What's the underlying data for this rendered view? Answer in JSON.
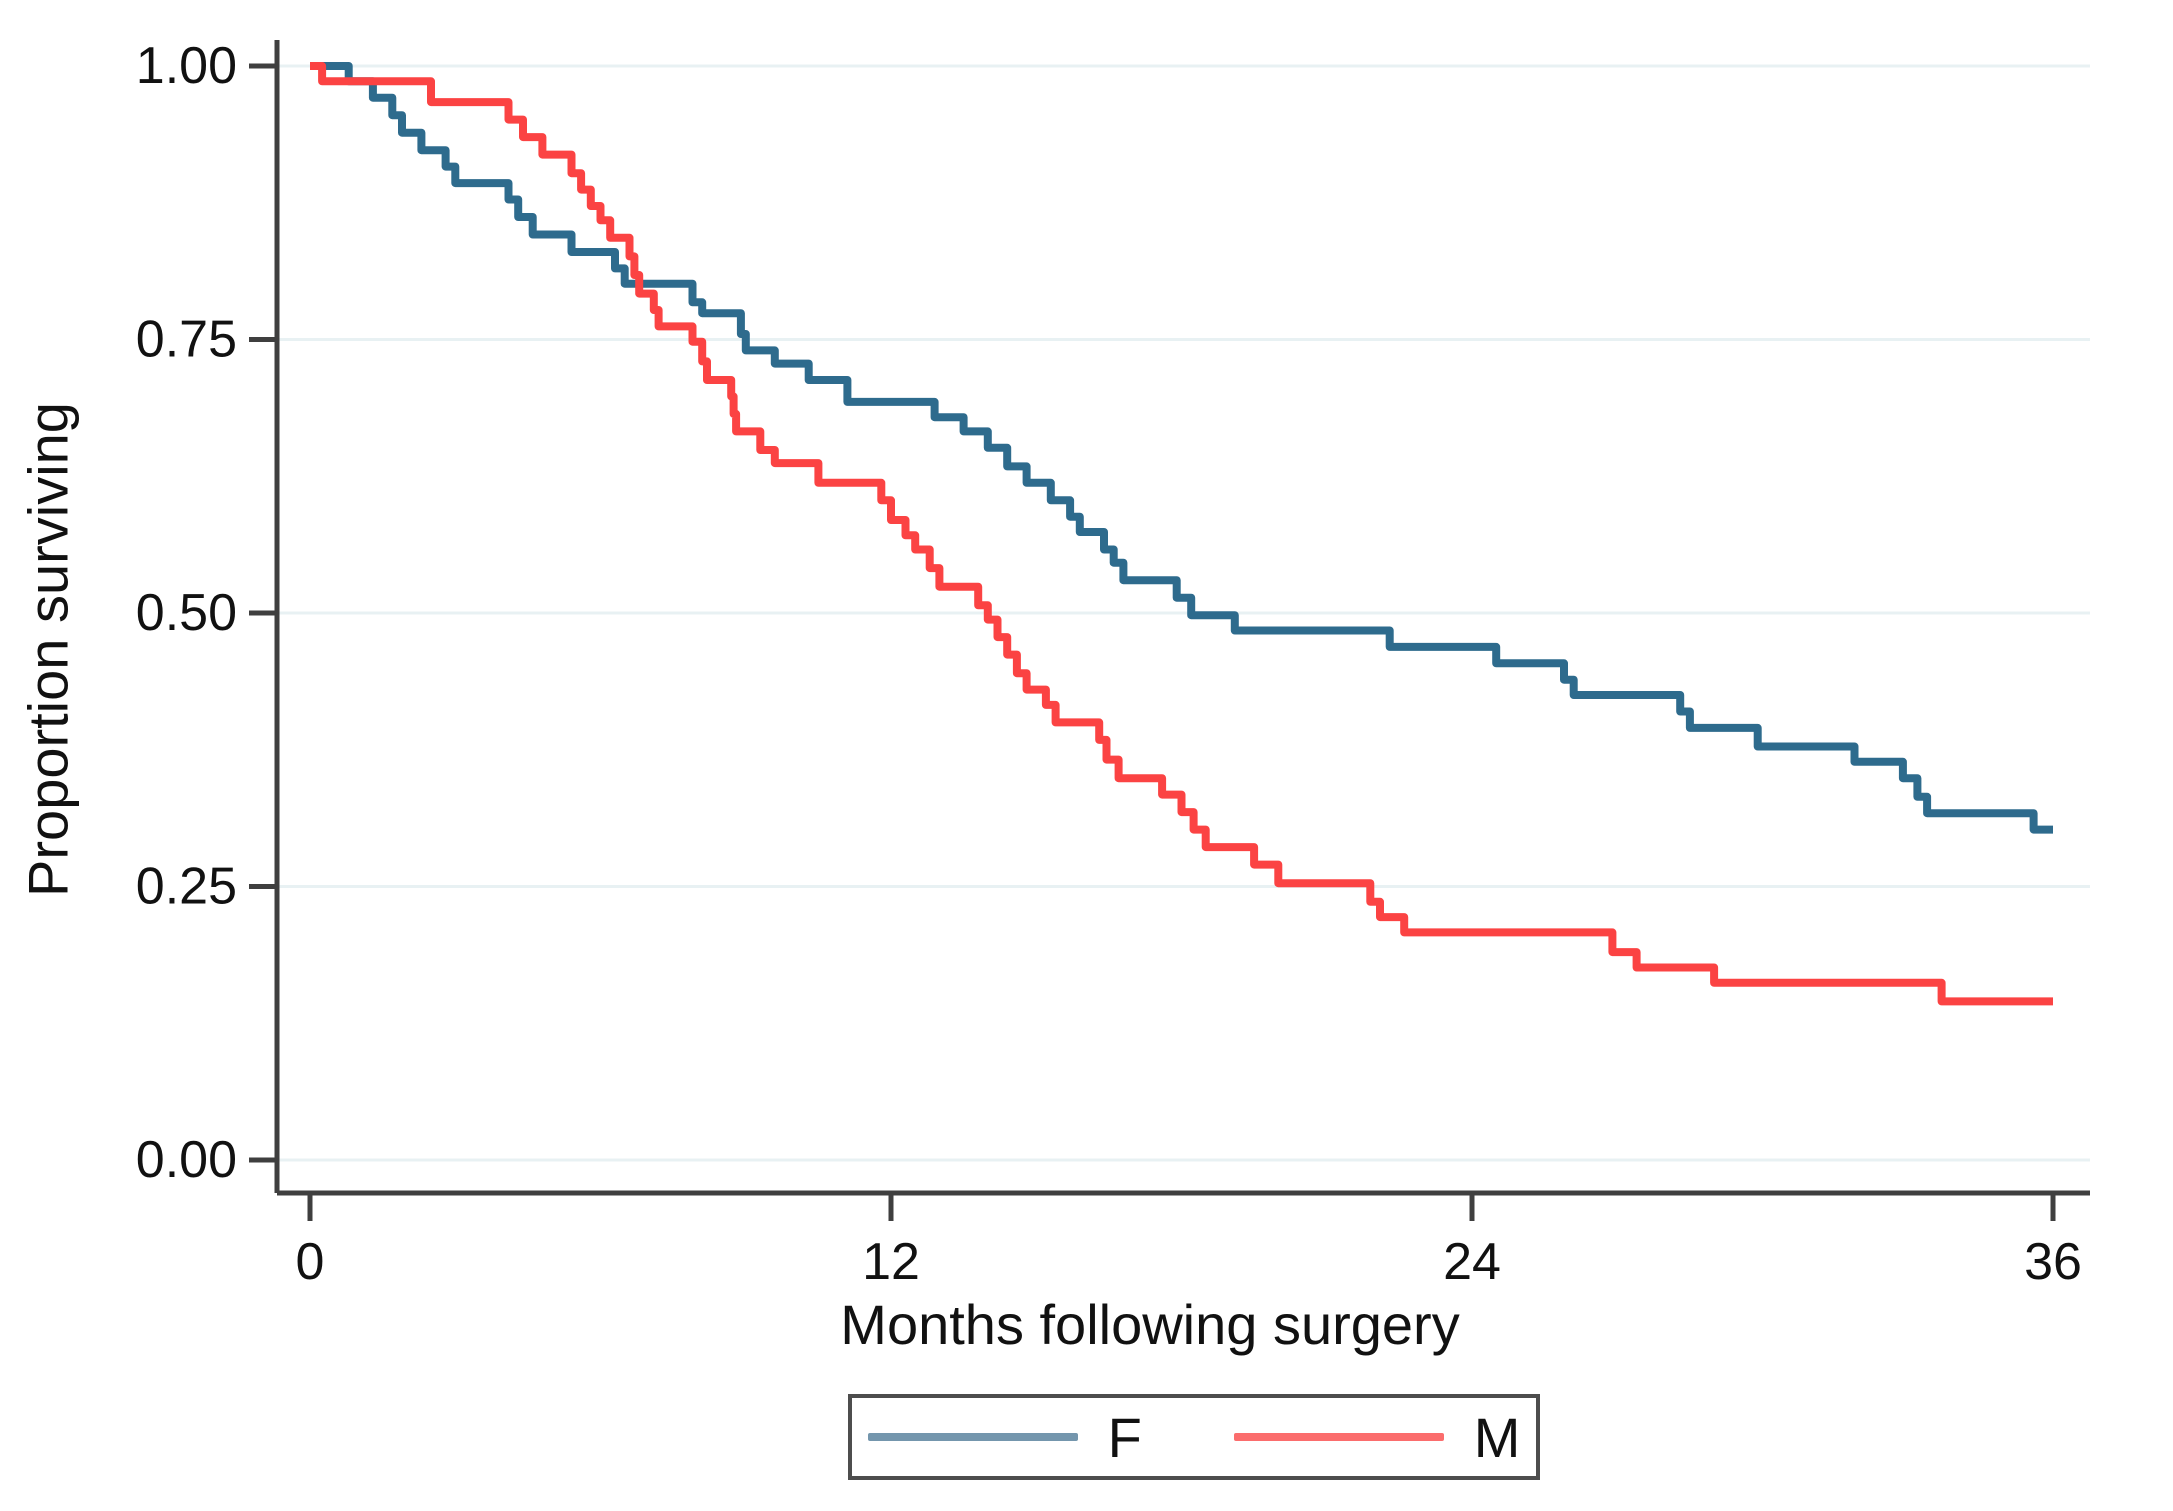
{
  "chart_data": {
    "type": "line",
    "subtype": "kaplan-meier-survival-step",
    "title": "",
    "xlabel": "Months following surgery",
    "ylabel": "Proportion surviving",
    "xlim": [
      0,
      36
    ],
    "ylim": [
      0,
      1
    ],
    "grid": "horizontal",
    "gridline_color": "#e8f1f3",
    "axis_color": "#3f3f3f",
    "legend_position": "bottom-center",
    "x_ticks": [
      {
        "value": 0,
        "label": "0"
      },
      {
        "value": 12,
        "label": "12"
      },
      {
        "value": 24,
        "label": "24"
      },
      {
        "value": 36,
        "label": "36"
      }
    ],
    "y_ticks": [
      {
        "value": 1.0,
        "label": "1.00"
      },
      {
        "value": 0.75,
        "label": "0.75"
      },
      {
        "value": 0.5,
        "label": "0.50"
      },
      {
        "value": 0.25,
        "label": "0.25"
      },
      {
        "value": 0.0,
        "label": "0.00"
      }
    ],
    "series": [
      {
        "name": "F",
        "color": "#2e6b8d",
        "legend_color": "#7496ad",
        "points": [
          [
            0,
            1.0
          ],
          [
            0.8,
            0.986
          ],
          [
            1.3,
            0.971
          ],
          [
            1.7,
            0.955
          ],
          [
            1.9,
            0.939
          ],
          [
            2.3,
            0.923
          ],
          [
            2.8,
            0.908
          ],
          [
            3.0,
            0.893
          ],
          [
            4.1,
            0.878
          ],
          [
            4.3,
            0.862
          ],
          [
            4.6,
            0.846
          ],
          [
            5.4,
            0.83
          ],
          [
            6.3,
            0.815
          ],
          [
            6.5,
            0.801
          ],
          [
            7.9,
            0.784
          ],
          [
            8.1,
            0.774
          ],
          [
            8.9,
            0.755
          ],
          [
            9.0,
            0.74
          ],
          [
            9.6,
            0.728
          ],
          [
            10.3,
            0.713
          ],
          [
            11.1,
            0.693
          ],
          [
            12.9,
            0.679
          ],
          [
            13.5,
            0.666
          ],
          [
            14.0,
            0.651
          ],
          [
            14.4,
            0.634
          ],
          [
            14.8,
            0.619
          ],
          [
            15.3,
            0.603
          ],
          [
            15.7,
            0.588
          ],
          [
            15.9,
            0.574
          ],
          [
            16.4,
            0.558
          ],
          [
            16.6,
            0.546
          ],
          [
            16.8,
            0.53
          ],
          [
            17.9,
            0.514
          ],
          [
            18.2,
            0.498
          ],
          [
            19.1,
            0.484
          ],
          [
            22.3,
            0.469
          ],
          [
            24.5,
            0.454
          ],
          [
            25.9,
            0.439
          ],
          [
            26.1,
            0.425
          ],
          [
            28.3,
            0.41
          ],
          [
            28.5,
            0.395
          ],
          [
            29.9,
            0.378
          ],
          [
            31.9,
            0.364
          ],
          [
            32.9,
            0.349
          ],
          [
            33.2,
            0.332
          ],
          [
            33.4,
            0.317
          ],
          [
            35.6,
            0.302
          ]
        ]
      },
      {
        "name": "M",
        "color": "#fb4343",
        "legend_color": "#fb6d6d",
        "points": [
          [
            0,
            1.0
          ],
          [
            0.25,
            0.986
          ],
          [
            2.5,
            0.967
          ],
          [
            4.1,
            0.951
          ],
          [
            4.4,
            0.935
          ],
          [
            4.8,
            0.919
          ],
          [
            5.4,
            0.902
          ],
          [
            5.6,
            0.887
          ],
          [
            5.8,
            0.872
          ],
          [
            6.0,
            0.859
          ],
          [
            6.2,
            0.843
          ],
          [
            6.6,
            0.826
          ],
          [
            6.7,
            0.809
          ],
          [
            6.8,
            0.792
          ],
          [
            7.1,
            0.777
          ],
          [
            7.2,
            0.762
          ],
          [
            7.9,
            0.748
          ],
          [
            8.1,
            0.73
          ],
          [
            8.2,
            0.713
          ],
          [
            8.7,
            0.698
          ],
          [
            8.75,
            0.682
          ],
          [
            8.8,
            0.666
          ],
          [
            9.3,
            0.649
          ],
          [
            9.6,
            0.637
          ],
          [
            10.5,
            0.619
          ],
          [
            11.8,
            0.603
          ],
          [
            12.0,
            0.585
          ],
          [
            12.3,
            0.571
          ],
          [
            12.5,
            0.558
          ],
          [
            12.8,
            0.541
          ],
          [
            13.0,
            0.524
          ],
          [
            13.8,
            0.507
          ],
          [
            14.0,
            0.494
          ],
          [
            14.2,
            0.478
          ],
          [
            14.4,
            0.462
          ],
          [
            14.6,
            0.445
          ],
          [
            14.8,
            0.43
          ],
          [
            15.2,
            0.416
          ],
          [
            15.4,
            0.4
          ],
          [
            16.3,
            0.384
          ],
          [
            16.45,
            0.366
          ],
          [
            16.7,
            0.349
          ],
          [
            17.6,
            0.334
          ],
          [
            18.0,
            0.318
          ],
          [
            18.25,
            0.302
          ],
          [
            18.5,
            0.286
          ],
          [
            19.5,
            0.27
          ],
          [
            20.0,
            0.253
          ],
          [
            21.9,
            0.236
          ],
          [
            22.1,
            0.222
          ],
          [
            22.6,
            0.208
          ],
          [
            26.9,
            0.19
          ],
          [
            27.4,
            0.176
          ],
          [
            29.0,
            0.162
          ],
          [
            33.7,
            0.145
          ]
        ]
      }
    ]
  }
}
